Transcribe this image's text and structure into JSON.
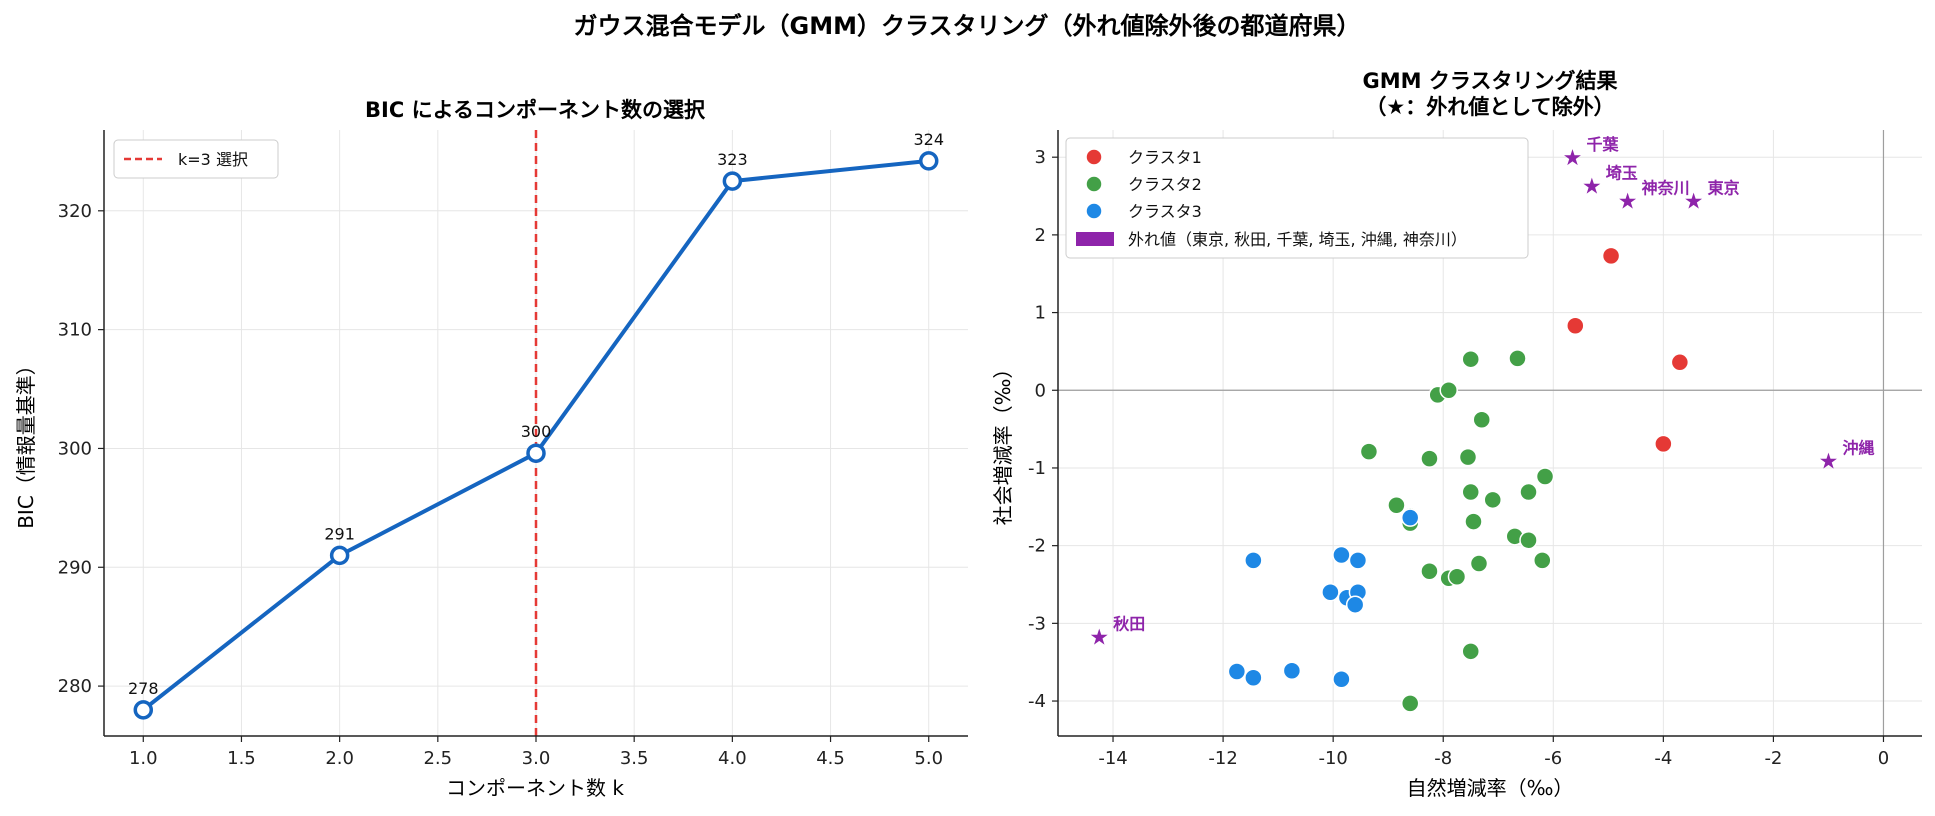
{
  "figure": {
    "suptitle": "ガウス混合モデル（GMM）クラスタリング（外れ値除外後の都道府県）"
  },
  "chart_data": [
    {
      "type": "line",
      "title": "BIC によるコンポーネント数の選択",
      "xlabel": "コンポーネント数 k",
      "ylabel": "BIC（情報量基準）",
      "x": [
        1,
        2,
        3,
        4,
        5
      ],
      "y": [
        278.0,
        291.0,
        299.6,
        322.5,
        324.2
      ],
      "data_labels": [
        "278",
        "291",
        "300",
        "323",
        "324"
      ],
      "xlim": [
        0.8,
        5.2
      ],
      "ylim": [
        275.8,
        326.8
      ],
      "xticks": [
        1.0,
        1.5,
        2.0,
        2.5,
        3.0,
        3.5,
        4.0,
        4.5,
        5.0
      ],
      "xtick_labels": [
        "1.0",
        "1.5",
        "2.0",
        "2.5",
        "3.0",
        "3.5",
        "4.0",
        "4.5",
        "5.0"
      ],
      "yticks": [
        280,
        290,
        300,
        310,
        320
      ],
      "ytick_labels": [
        "280",
        "290",
        "300",
        "310",
        "320"
      ],
      "vline": {
        "x": 3,
        "label": "k=3 選択",
        "color": "#e53935"
      },
      "legend_position": "top-left",
      "grid": true,
      "line_color": "#1565c0"
    },
    {
      "type": "scatter",
      "title": "GMM クラスタリング結果",
      "subtitle": "（★：外れ値として除外）",
      "xlabel": "自然増減率（‰）",
      "ylabel": "社会増減率（‰）",
      "xlim": [
        -15.0,
        0.7
      ],
      "ylim": [
        -4.45,
        3.35
      ],
      "xticks": [
        -14,
        -12,
        -10,
        -8,
        -6,
        -4,
        -2,
        0
      ],
      "xtick_labels": [
        "-14",
        "-12",
        "-10",
        "-8",
        "-6",
        "-4",
        "-2",
        "0"
      ],
      "yticks": [
        -4,
        -3,
        -2,
        -1,
        0,
        1,
        2,
        3
      ],
      "ytick_labels": [
        "-4",
        "-3",
        "-2",
        "-1",
        "0",
        "1",
        "2",
        "3"
      ],
      "grid": true,
      "legend_position": "top-left",
      "series": [
        {
          "name": "クラスタ1",
          "color": "#e53935",
          "points": [
            [
              -4.95,
              1.73
            ],
            [
              -5.6,
              0.83
            ],
            [
              -3.7,
              0.36
            ],
            [
              -4.0,
              -0.69
            ]
          ]
        },
        {
          "name": "クラスタ2",
          "color": "#43a047",
          "points": [
            [
              -7.5,
              0.4
            ],
            [
              -6.65,
              0.41
            ],
            [
              -8.1,
              -0.06
            ],
            [
              -7.9,
              0.0
            ],
            [
              -7.3,
              -0.38
            ],
            [
              -9.35,
              -0.79
            ],
            [
              -8.25,
              -0.88
            ],
            [
              -7.55,
              -0.86
            ],
            [
              -6.15,
              -1.11
            ],
            [
              -7.5,
              -1.31
            ],
            [
              -7.1,
              -1.41
            ],
            [
              -6.45,
              -1.31
            ],
            [
              -8.85,
              -1.48
            ],
            [
              -8.6,
              -1.62
            ],
            [
              -8.6,
              -1.71
            ],
            [
              -7.45,
              -1.69
            ],
            [
              -6.7,
              -1.88
            ],
            [
              -6.45,
              -1.93
            ],
            [
              -6.2,
              -2.19
            ],
            [
              -7.35,
              -2.23
            ],
            [
              -8.25,
              -2.33
            ],
            [
              -7.9,
              -2.42
            ],
            [
              -7.75,
              -2.4
            ],
            [
              -7.5,
              -3.36
            ],
            [
              -8.6,
              -4.03
            ]
          ]
        },
        {
          "name": "クラスタ3",
          "color": "#1e88e5",
          "points": [
            [
              -8.6,
              -1.64
            ],
            [
              -11.45,
              -2.19
            ],
            [
              -9.85,
              -2.12
            ],
            [
              -9.55,
              -2.19
            ],
            [
              -10.05,
              -2.6
            ],
            [
              -9.75,
              -2.67
            ],
            [
              -9.55,
              -2.6
            ],
            [
              -9.6,
              -2.76
            ],
            [
              -11.75,
              -3.62
            ],
            [
              -11.45,
              -3.7
            ],
            [
              -10.75,
              -3.61
            ],
            [
              -9.85,
              -3.72
            ]
          ]
        }
      ],
      "outliers": {
        "name": "外れ値（東京, 秋田, 千葉, 埼玉, 沖縄, 神奈川）",
        "color": "#8e24aa",
        "points": [
          {
            "label": "千葉",
            "x": -5.65,
            "y": 2.99
          },
          {
            "label": "埼玉",
            "x": -5.3,
            "y": 2.62
          },
          {
            "label": "神奈川",
            "x": -4.65,
            "y": 2.43
          },
          {
            "label": "東京",
            "x": -3.45,
            "y": 2.43
          },
          {
            "label": "沖縄",
            "x": -1.0,
            "y": -0.92
          },
          {
            "label": "秋田",
            "x": -14.25,
            "y": -3.18
          }
        ]
      }
    }
  ]
}
